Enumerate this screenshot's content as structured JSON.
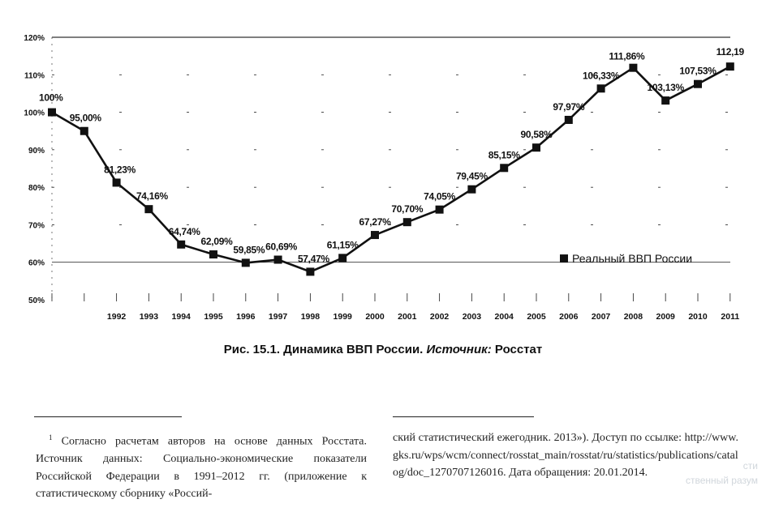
{
  "chart_data": {
    "type": "line",
    "title": "",
    "xlabel": "",
    "ylabel": "",
    "x": [
      "",
      "",
      "1992",
      "1993",
      "1994",
      "1995",
      "1996",
      "1997",
      "1998",
      "1999",
      "2000",
      "2001",
      "2002",
      "2003",
      "2004",
      "2005",
      "2006",
      "2007",
      "2008",
      "2009",
      "2010",
      "2011"
    ],
    "series": [
      {
        "name": "Реальный ВВП России",
        "values": [
          100,
          95.0,
          81.23,
          74.16,
          64.74,
          62.09,
          59.85,
          60.69,
          57.47,
          61.15,
          67.27,
          70.7,
          74.05,
          79.45,
          85.15,
          90.58,
          97.97,
          106.33,
          111.86,
          103.13,
          107.53,
          112.19
        ],
        "labels": [
          "100%",
          "95,00%",
          "81,23%",
          "74,16%",
          "64,74%",
          "62,09%",
          "59,85%",
          "60,69%",
          "57,47%",
          "61,15%",
          "67,27%",
          "70,70%",
          "74,05%",
          "79,45%",
          "85,15%",
          "90,58%",
          "97,97%",
          "106,33%",
          "111,86%",
          "103,13%",
          "107,53%",
          "112,19"
        ],
        "color": "#111111"
      }
    ],
    "y_ticks": [
      "120%",
      "110%",
      "100%",
      "90%",
      "80%",
      "70%",
      "60%",
      "50%"
    ],
    "ylim": [
      50,
      120
    ],
    "grid": true,
    "legend_position": "right"
  },
  "caption": {
    "prefix": "Рис. 15.1. Динамика ВВП России. ",
    "source_label": "Источник:",
    "source": " Росстат"
  },
  "footnote": {
    "mark": "1",
    "left_text": "Согласно расчетам авторов на основе данных Росстата. Источник данных: Социально-экономические показатели Российской Федерации в 1991–2012 гг. (приложение к статистическому сборнику «Россий-",
    "right_text": "ский статистический ежегодник. 2013»). Доступ по ссылке: http://www.gks.ru/wps/wcm/connect/rosstat_main/rosstat/ru/statistics/publications/catalog/doc_1270707126016. Дата обращения: 20.01.2014."
  },
  "watermark": {
    "line1": "сти",
    "line2": "ственный разум"
  }
}
